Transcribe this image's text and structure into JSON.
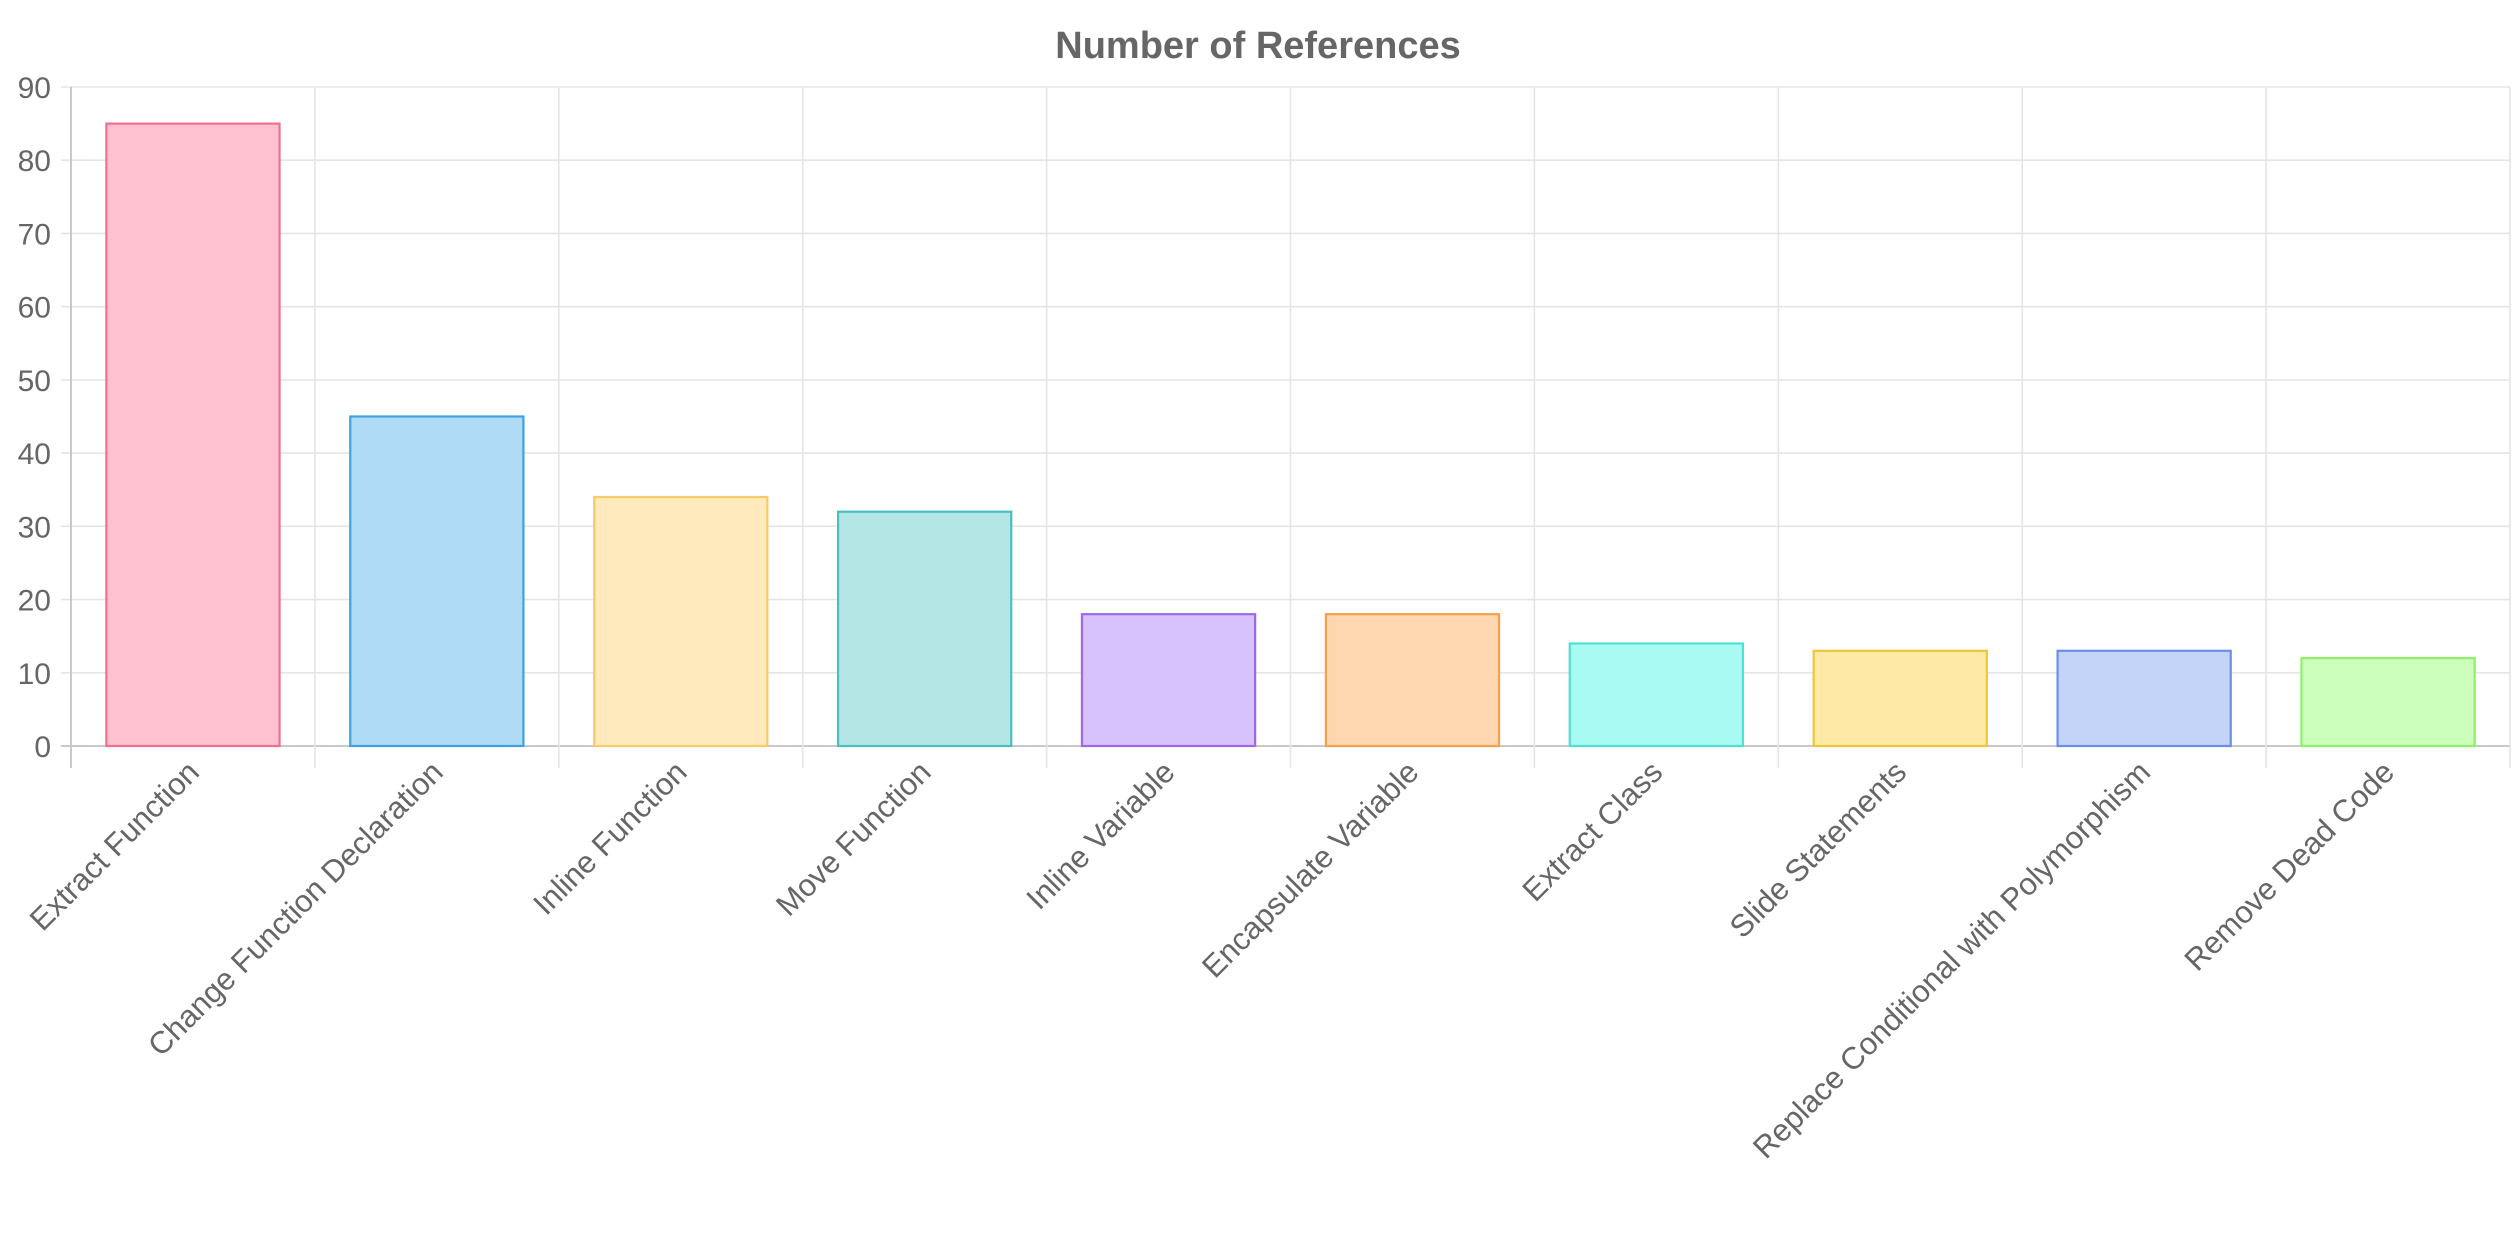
{
  "chart_data": {
    "type": "bar",
    "title": "Number of References",
    "xlabel": "",
    "ylabel": "",
    "ylim": [
      0,
      90
    ],
    "yticks": [
      0,
      10,
      20,
      30,
      40,
      50,
      60,
      70,
      80,
      90
    ],
    "grid": true,
    "legend": "none",
    "categories": [
      "Extract Function",
      "Change Function Declaration",
      "Inline Function",
      "Move Function",
      "Inline Variable",
      "Encapsulate Variable",
      "Extract Class",
      "Slide Statements",
      "Replace Conditional with Polymorphism",
      "Remove Dead Code"
    ],
    "values": [
      85,
      45,
      34,
      32,
      18,
      18,
      14,
      13,
      13,
      12
    ],
    "colors": {
      "fill": [
        "#ffc0cf",
        "#b0dbf7",
        "#feeabd",
        "#b4e6e6",
        "#d8c2fd",
        "#fed7b0",
        "#a8faf2",
        "#ffe9a7",
        "#c4d4f9",
        "#ccfebc"
      ],
      "border": [
        "#f0708e",
        "#3ea1e0",
        "#f5cc66",
        "#4bbfbf",
        "#9a6ae8",
        "#f5a04a",
        "#4fe0d4",
        "#efc53a",
        "#6c8fe6",
        "#8ef06a"
      ]
    }
  }
}
